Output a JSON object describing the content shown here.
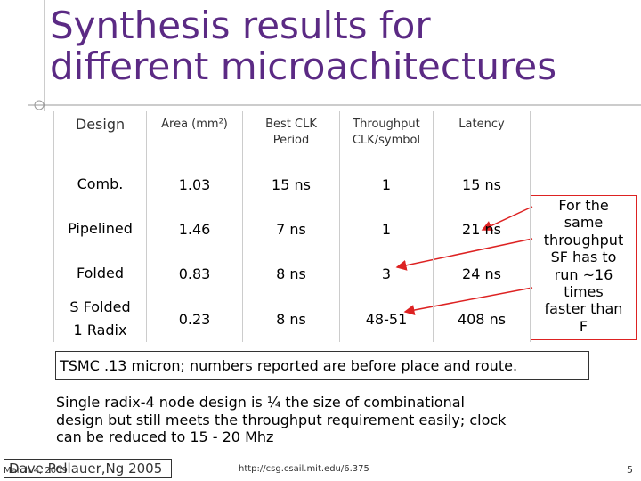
{
  "title": [
    "Synthesis results for",
    "different microachitectures"
  ],
  "table": {
    "header": [
      "Design",
      "Area (mm²)",
      [
        "Best CLK",
        "Period"
      ],
      [
        "Throughput",
        "CLK/symbol"
      ],
      "Latency"
    ],
    "rows": [
      [
        "Comb.",
        "1.03",
        "15 ns",
        "1",
        "15 ns"
      ],
      [
        "Pipelined",
        "1.46",
        "7 ns",
        "1",
        "21 ns"
      ],
      [
        "Folded",
        "0.83",
        "8 ns",
        "3",
        "24 ns"
      ],
      [
        [
          "S Folded",
          "1 Radix"
        ],
        "0.23",
        "8 ns",
        "48-51",
        "408 ns"
      ]
    ]
  },
  "callout": [
    "For the",
    "same",
    "throughput",
    "SF has to",
    "run ~16",
    "times",
    "faster than",
    "F"
  ],
  "note": "TSMC .13 micron; numbers reported are before place and route.",
  "paragraph": [
    "Single radix-4 node design is ¼ the size of combinational",
    "design but still meets the throughput requirement easily; clock",
    "can be reduced to 15 - 20 Mhz"
  ],
  "footer": {
    "authors": "Dave Pellauer,Ng 2005",
    "date": "March 4, 2009",
    "url": "http://csg.csail.mit.edu/6.375",
    "page": "5"
  }
}
